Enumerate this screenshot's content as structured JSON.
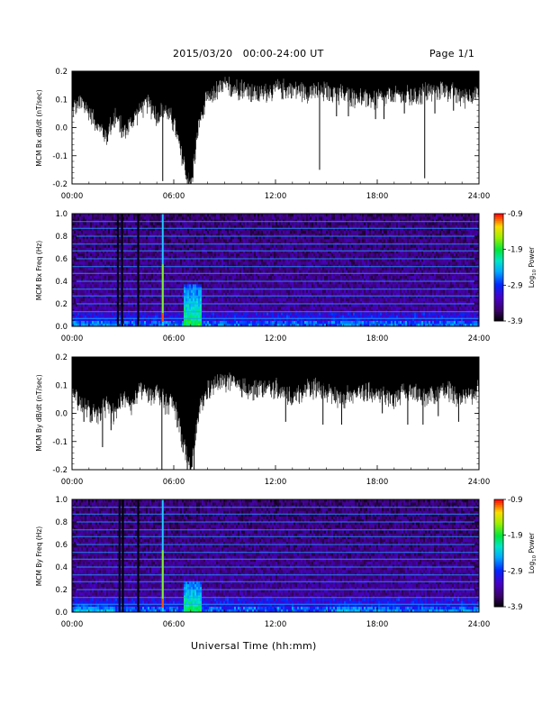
{
  "header": {
    "title": "2015/03/20   00:00-24:00 UT",
    "page": "Page 1/1"
  },
  "xaxis_title": "Universal Time (hh:mm)",
  "chart_data": [
    {
      "type": "line",
      "ylabel": "MCM Bx dB/dt (nT/sec)",
      "xlim": [
        0,
        24
      ],
      "ylim": [
        -0.2,
        0.2
      ],
      "x_ticks": [
        "00:00",
        "06:00",
        "12:00",
        "18:00",
        "24:00"
      ],
      "y_ticks": [
        "0.2",
        "0.1",
        "0.0",
        "-0.1",
        "-0.2"
      ],
      "upper_envelope": 0.2,
      "lower_envelope": {
        "x": [
          0,
          0.5,
          1,
          1.5,
          2,
          2.5,
          3,
          3.5,
          4,
          4.5,
          5,
          5.5,
          6,
          6.5,
          7,
          7.5,
          8,
          9,
          10,
          11,
          12,
          13,
          14,
          15,
          16,
          17,
          18,
          19,
          20,
          21,
          22,
          23,
          24
        ],
        "y": [
          0.08,
          0.1,
          0.07,
          0.03,
          -0.02,
          0.06,
          0.0,
          0.03,
          0.08,
          0.1,
          0.05,
          0.08,
          0.03,
          -0.1,
          -0.2,
          0.03,
          0.12,
          0.16,
          0.15,
          0.13,
          0.15,
          0.15,
          0.14,
          0.14,
          0.13,
          0.12,
          0.11,
          0.13,
          0.12,
          0.14,
          0.15,
          0.12,
          0.14
        ]
      },
      "spikes": [
        {
          "x": 2.1,
          "y": -0.05
        },
        {
          "x": 2.5,
          "y": 0.0
        },
        {
          "x": 3.0,
          "y": 0.0
        },
        {
          "x": 5.35,
          "y": -0.19
        },
        {
          "x": 6.6,
          "y": -0.08
        },
        {
          "x": 6.9,
          "y": -0.21
        },
        {
          "x": 8.2,
          "y": 0.1
        },
        {
          "x": 9.4,
          "y": 0.11
        },
        {
          "x": 14.6,
          "y": -0.15
        },
        {
          "x": 15.6,
          "y": 0.04
        },
        {
          "x": 16.3,
          "y": 0.04
        },
        {
          "x": 17.9,
          "y": 0.03
        },
        {
          "x": 18.4,
          "y": 0.03
        },
        {
          "x": 19.6,
          "y": 0.05
        },
        {
          "x": 20.8,
          "y": -0.18
        },
        {
          "x": 21.4,
          "y": 0.05
        },
        {
          "x": 22.5,
          "y": 0.06
        }
      ]
    },
    {
      "type": "heatmap",
      "ylabel": "MCM Bx Freq (Hz)",
      "colorbar_label": "Log10 Power",
      "xlim": [
        0,
        24
      ],
      "ylim": [
        0,
        1.0
      ],
      "x_ticks": [
        "00:00",
        "06:00",
        "12:00",
        "18:00",
        "24:00"
      ],
      "y_ticks": [
        "1.0",
        "0.8",
        "0.6",
        "0.4",
        "0.2",
        "0.0"
      ],
      "color_range": [
        -3.9,
        -0.9
      ],
      "colorbar_ticks": [
        "-0.9",
        "-1.9",
        "-2.9",
        "-3.9"
      ],
      "harmonic_lines_hz": [
        0.07,
        0.13,
        0.2,
        0.27,
        0.33,
        0.4,
        0.47,
        0.53,
        0.6,
        0.67,
        0.73,
        0.8,
        0.87,
        0.93,
        1.0
      ],
      "vertical_features": [
        {
          "x": 2.7,
          "kind": "gap"
        },
        {
          "x": 2.95,
          "kind": "gap"
        },
        {
          "x": 3.9,
          "kind": "gap"
        },
        {
          "x": 5.35,
          "kind": "broadband"
        }
      ],
      "activity_bursts": [
        {
          "x": [
            6.6,
            7.6
          ],
          "fmax": 0.38,
          "level": -1.9
        },
        {
          "x": [
            0.1,
            2.5
          ],
          "fmax": 0.12,
          "level": -2.6
        },
        {
          "x": [
            15.6,
            17.0
          ],
          "fmax": 0.12,
          "level": -2.5
        },
        {
          "x": [
            17.8,
            19.2
          ],
          "fmax": 0.12,
          "level": -2.6
        },
        {
          "x": [
            20.5,
            24.0
          ],
          "fmax": 0.08,
          "level": -2.7
        }
      ]
    },
    {
      "type": "line",
      "ylabel": "MCM By dB/dt (nT/sec)",
      "xlim": [
        0,
        24
      ],
      "ylim": [
        -0.2,
        0.2
      ],
      "x_ticks": [
        "00:00",
        "06:00",
        "12:00",
        "18:00",
        "24:00"
      ],
      "y_ticks": [
        "0.2",
        "0.1",
        "0.0",
        "-0.1",
        "-0.2"
      ],
      "upper_envelope": 0.2,
      "lower_envelope": {
        "x": [
          0,
          0.5,
          1,
          1.5,
          2,
          2.5,
          3,
          3.5,
          4,
          4.5,
          5,
          5.5,
          6,
          6.5,
          7,
          7.5,
          8,
          9,
          10,
          11,
          12,
          13,
          14,
          15,
          16,
          17,
          18,
          19,
          20,
          21,
          22,
          23,
          24
        ],
        "y": [
          0.1,
          0.05,
          0.02,
          0.0,
          0.04,
          0.01,
          0.07,
          0.04,
          0.1,
          0.08,
          0.09,
          0.05,
          0.05,
          -0.08,
          -0.2,
          0.02,
          0.1,
          0.13,
          0.1,
          0.1,
          0.1,
          0.07,
          0.11,
          0.09,
          0.07,
          0.09,
          0.08,
          0.07,
          0.1,
          0.07,
          0.1,
          0.07,
          0.1
        ]
      },
      "spikes": [
        {
          "x": 0.7,
          "y": -0.03
        },
        {
          "x": 1.8,
          "y": -0.12
        },
        {
          "x": 2.3,
          "y": -0.06
        },
        {
          "x": 5.3,
          "y": -0.2
        },
        {
          "x": 6.8,
          "y": -0.2
        },
        {
          "x": 7.2,
          "y": -0.2
        },
        {
          "x": 12.6,
          "y": -0.03
        },
        {
          "x": 14.8,
          "y": -0.04
        },
        {
          "x": 15.9,
          "y": -0.04
        },
        {
          "x": 18.3,
          "y": 0.0
        },
        {
          "x": 19.8,
          "y": -0.04
        },
        {
          "x": 20.7,
          "y": -0.04
        },
        {
          "x": 21.6,
          "y": -0.01
        },
        {
          "x": 22.8,
          "y": -0.03
        }
      ]
    },
    {
      "type": "heatmap",
      "ylabel": "MCM By Freq (Hz)",
      "colorbar_label": "Log10 Power",
      "xlim": [
        0,
        24
      ],
      "ylim": [
        0,
        1.0
      ],
      "x_ticks": [
        "00:00",
        "06:00",
        "12:00",
        "18:00",
        "24:00"
      ],
      "y_ticks": [
        "1.0",
        "0.8",
        "0.6",
        "0.4",
        "0.2",
        "0.0"
      ],
      "color_range": [
        -3.9,
        -0.9
      ],
      "colorbar_ticks": [
        "-0.9",
        "-1.9",
        "-2.9",
        "-3.9"
      ],
      "harmonic_lines_hz": [
        0.07,
        0.13,
        0.2,
        0.27,
        0.33,
        0.4,
        0.47,
        0.53,
        0.6,
        0.67,
        0.73,
        0.8,
        0.87,
        0.93,
        1.0
      ],
      "vertical_features": [
        {
          "x": 2.8,
          "kind": "gap"
        },
        {
          "x": 3.0,
          "kind": "gap"
        },
        {
          "x": 3.9,
          "kind": "gap"
        },
        {
          "x": 5.35,
          "kind": "broadband"
        }
      ],
      "activity_bursts": [
        {
          "x": [
            6.6,
            7.6
          ],
          "fmax": 0.28,
          "level": -1.9
        },
        {
          "x": [
            0.1,
            2.5
          ],
          "fmax": 0.1,
          "level": -2.3
        },
        {
          "x": [
            15.6,
            17.0
          ],
          "fmax": 0.12,
          "level": -2.4
        },
        {
          "x": [
            17.8,
            19.2
          ],
          "fmax": 0.12,
          "level": -2.5
        },
        {
          "x": [
            20.5,
            24.0
          ],
          "fmax": 0.08,
          "level": -2.5
        }
      ]
    }
  ]
}
